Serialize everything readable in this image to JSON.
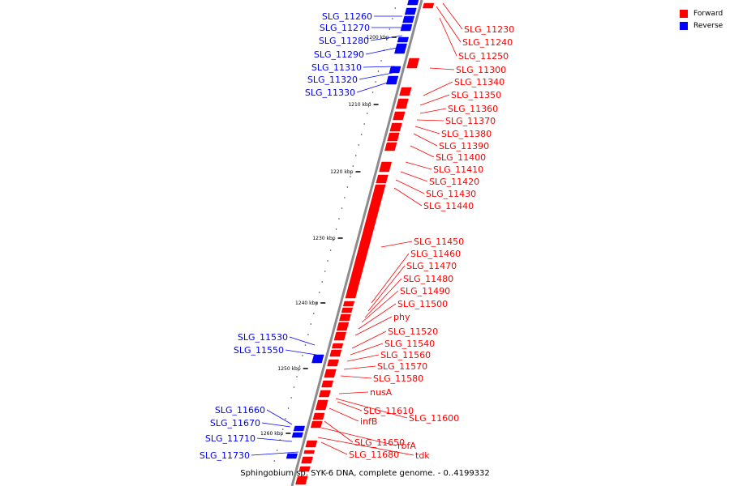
{
  "caption": "Sphingobium sp. SYK-6 DNA, complete genome. - 0..4199332",
  "legend": [
    {
      "label": "Forward",
      "color": "#ff0000"
    },
    {
      "label": "Reverse",
      "color": "#0000ff"
    }
  ],
  "colors": {
    "forward": "#ff0000",
    "reverse": "#0000ff",
    "backbone": "#8c8c8c"
  },
  "ticks": [
    "1200 kbp",
    "1210 kbp",
    "1220 kbp",
    "1230 kbp",
    "1240 kbp",
    "1250 kbp",
    "1260 kbp"
  ],
  "reverse_genes": [
    "SLG_11260",
    "SLG_11270",
    "SLG_11280",
    "SLG_11290",
    "SLG_11310",
    "SLG_11320",
    "SLG_11330",
    "SLG_11530",
    "SLG_11550",
    "SLG_11660",
    "SLG_11670",
    "SLG_11710",
    "SLG_11730"
  ],
  "forward_genes": [
    "SLG_11230",
    "SLG_11240",
    "SLG_11250",
    "SLG_11300",
    "SLG_11340",
    "SLG_11350",
    "SLG_11360",
    "SLG_11370",
    "SLG_11380",
    "SLG_11390",
    "SLG_11400",
    "SLG_11410",
    "SLG_11420",
    "SLG_11430",
    "SLG_11440",
    "SLG_11450",
    "SLG_11460",
    "SLG_11470",
    "SLG_11480",
    "SLG_11490",
    "SLG_11500",
    "phy",
    "SLG_11520",
    "SLG_11540",
    "SLG_11560",
    "SLG_11570",
    "SLG_11580",
    "nusA",
    "SLG_11610",
    "SLG_11600",
    "infB",
    "SLG_11650",
    "rbfA",
    "SLG_11680",
    "tdk"
  ]
}
